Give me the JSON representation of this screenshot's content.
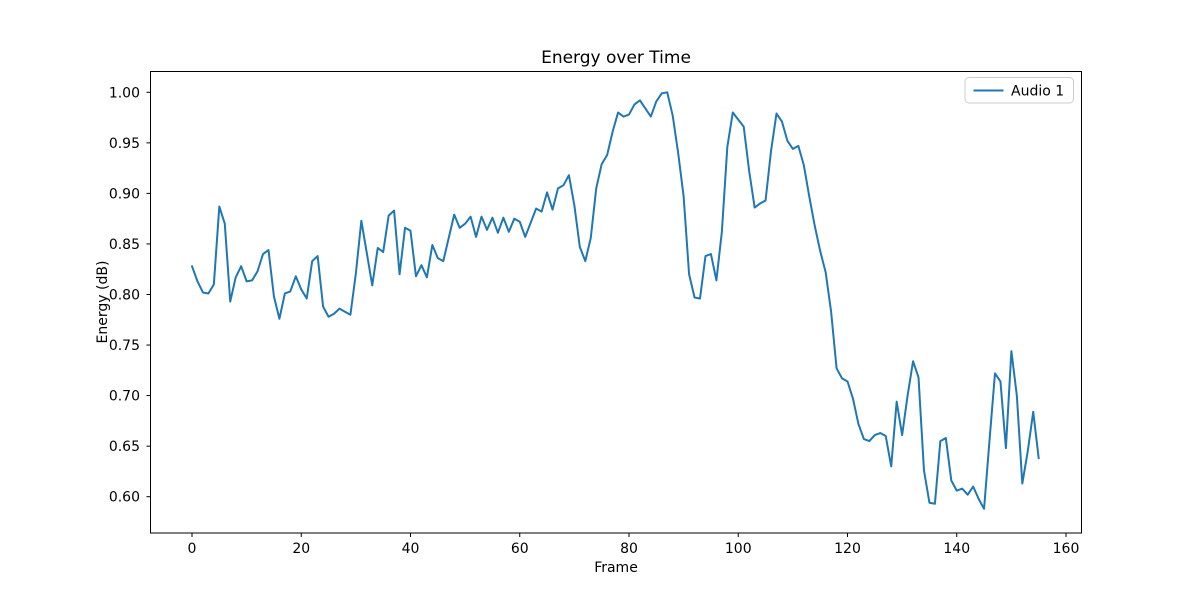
{
  "chart_data": {
    "type": "line",
    "title": "Energy over Time",
    "xlabel": "Frame",
    "ylabel": "Energy (dB)",
    "grid": false,
    "legend_position": "upper right",
    "x_ticks": [
      0,
      20,
      40,
      60,
      80,
      100,
      120,
      140,
      160
    ],
    "y_ticks": [
      0.6,
      0.65,
      0.7,
      0.75,
      0.8,
      0.85,
      0.9,
      0.95,
      1.0
    ],
    "xlim": [
      -7.75,
      162.75
    ],
    "ylim": [
      0.567,
      1.021
    ],
    "series": [
      {
        "name": "Audio 1",
        "color": "#1f77b4",
        "x_start": 0,
        "x_step": 1,
        "values": [
          0.828,
          0.813,
          0.802,
          0.801,
          0.81,
          0.887,
          0.87,
          0.793,
          0.817,
          0.828,
          0.813,
          0.814,
          0.823,
          0.84,
          0.844,
          0.798,
          0.776,
          0.801,
          0.803,
          0.818,
          0.805,
          0.796,
          0.833,
          0.838,
          0.788,
          0.778,
          0.781,
          0.786,
          0.783,
          0.78,
          0.821,
          0.873,
          0.841,
          0.809,
          0.846,
          0.842,
          0.878,
          0.883,
          0.82,
          0.866,
          0.863,
          0.818,
          0.829,
          0.817,
          0.849,
          0.836,
          0.833,
          0.856,
          0.879,
          0.866,
          0.87,
          0.877,
          0.857,
          0.877,
          0.864,
          0.876,
          0.861,
          0.876,
          0.862,
          0.875,
          0.872,
          0.857,
          0.871,
          0.885,
          0.882,
          0.901,
          0.884,
          0.905,
          0.908,
          0.918,
          0.888,
          0.847,
          0.833,
          0.856,
          0.905,
          0.929,
          0.938,
          0.961,
          0.98,
          0.976,
          0.978,
          0.988,
          0.992,
          0.984,
          0.976,
          0.991,
          0.999,
          1.0,
          0.977,
          0.94,
          0.897,
          0.82,
          0.797,
          0.796,
          0.838,
          0.84,
          0.814,
          0.862,
          0.946,
          0.98,
          0.973,
          0.966,
          0.922,
          0.886,
          0.89,
          0.893,
          0.942,
          0.979,
          0.971,
          0.952,
          0.944,
          0.947,
          0.928,
          0.897,
          0.868,
          0.843,
          0.822,
          0.783,
          0.727,
          0.717,
          0.714,
          0.697,
          0.672,
          0.657,
          0.655,
          0.661,
          0.663,
          0.66,
          0.63,
          0.694,
          0.661,
          0.7,
          0.734,
          0.718,
          0.626,
          0.594,
          0.593,
          0.655,
          0.658,
          0.616,
          0.606,
          0.608,
          0.602,
          0.61,
          0.598,
          0.588,
          0.656,
          0.722,
          0.714,
          0.648,
          0.744,
          0.7,
          0.613,
          0.645,
          0.684,
          0.638
        ]
      }
    ]
  }
}
